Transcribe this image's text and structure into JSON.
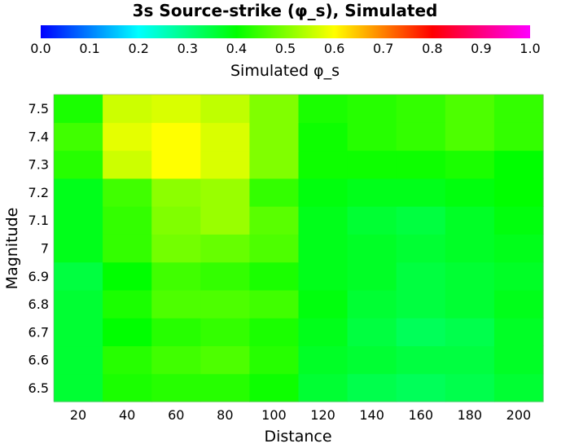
{
  "chart_data": {
    "type": "heatmap",
    "title": "3s Source-strike (φ_s), Simulated",
    "xlabel": "Distance",
    "ylabel": "Magnitude",
    "x": [
      "20",
      "40",
      "60",
      "80",
      "100",
      "120",
      "140",
      "160",
      "180",
      "200"
    ],
    "y": [
      "6.5",
      "6.6",
      "6.7",
      "6.8",
      "6.9",
      "7",
      "7.1",
      "7.2",
      "7.3",
      "7.4",
      "7.5"
    ],
    "values": [
      [
        0.36,
        0.42,
        0.43,
        0.43,
        0.41,
        0.36,
        0.34,
        0.33,
        0.34,
        0.36
      ],
      [
        0.36,
        0.43,
        0.45,
        0.46,
        0.43,
        0.37,
        0.36,
        0.35,
        0.35,
        0.37
      ],
      [
        0.36,
        0.4,
        0.43,
        0.44,
        0.42,
        0.38,
        0.35,
        0.33,
        0.34,
        0.37
      ],
      [
        0.36,
        0.42,
        0.46,
        0.46,
        0.45,
        0.39,
        0.36,
        0.35,
        0.36,
        0.38
      ],
      [
        0.35,
        0.4,
        0.45,
        0.44,
        0.42,
        0.38,
        0.37,
        0.35,
        0.36,
        0.37
      ],
      [
        0.38,
        0.44,
        0.49,
        0.48,
        0.46,
        0.38,
        0.37,
        0.36,
        0.37,
        0.38
      ],
      [
        0.38,
        0.44,
        0.5,
        0.52,
        0.47,
        0.38,
        0.36,
        0.35,
        0.37,
        0.39
      ],
      [
        0.38,
        0.45,
        0.51,
        0.52,
        0.44,
        0.39,
        0.38,
        0.38,
        0.39,
        0.4
      ],
      [
        0.43,
        0.56,
        0.6,
        0.57,
        0.5,
        0.41,
        0.41,
        0.41,
        0.42,
        0.4
      ],
      [
        0.45,
        0.58,
        0.6,
        0.57,
        0.5,
        0.41,
        0.43,
        0.44,
        0.46,
        0.44
      ],
      [
        0.42,
        0.56,
        0.57,
        0.55,
        0.5,
        0.42,
        0.43,
        0.44,
        0.46,
        0.44
      ]
    ],
    "colorbar": {
      "label": "Simulated φ_s",
      "ticks": [
        "0.0",
        "0.1",
        "0.2",
        "0.3",
        "0.4",
        "0.5",
        "0.6",
        "0.7",
        "0.8",
        "0.9",
        "1.0"
      ],
      "range": [
        0.0,
        1.0
      ],
      "colormap": [
        "#0000ff",
        "#00ffff",
        "#00ff00",
        "#ffff00",
        "#ff0000",
        "#ff00ff"
      ]
    }
  }
}
